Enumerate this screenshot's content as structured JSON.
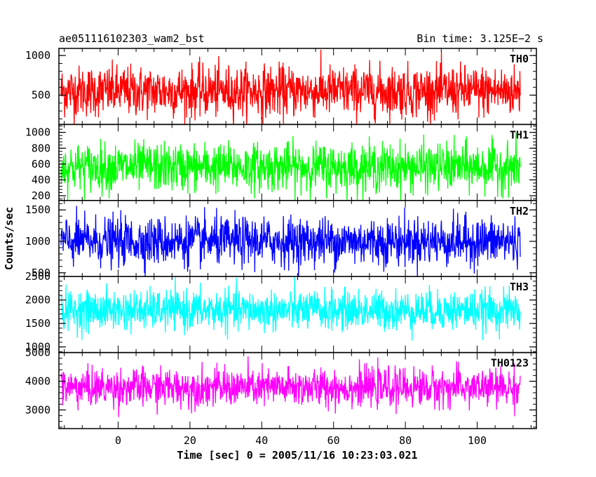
{
  "chart_data": {
    "type": "line",
    "header_left": "ae051116102303_wam2_bst",
    "header_right": "Bin time: 3.125E−2 s",
    "xlabel": "Time [sec] 0 = 2005/11/16 10:23:03.021",
    "ylabel": "Counts/sec",
    "xlim": [
      -16.5,
      116.5
    ],
    "x_ticks": [
      0,
      20,
      40,
      60,
      80,
      100
    ],
    "series_x_range": [
      -15.9,
      112.0
    ],
    "panels": [
      {
        "name": "TH0",
        "color": "#ff0000",
        "ylim": [
          130,
          1090
        ],
        "y_ticks": [
          500,
          1000
        ],
        "mean": 550,
        "spread": 160,
        "min": 120,
        "max": 1090
      },
      {
        "name": "TH1",
        "color": "#00ff00",
        "ylim": [
          140,
          1100
        ],
        "y_ticks": [
          200,
          400,
          600,
          800,
          1000
        ],
        "mean": 560,
        "spread": 150,
        "min": 140,
        "max": 1100
      },
      {
        "name": "TH2",
        "color": "#0000ff",
        "ylim": [
          440,
          1650
        ],
        "y_ticks": [
          500,
          1000,
          1500
        ],
        "mean": 1000,
        "spread": 190,
        "min": 440,
        "max": 1650
      },
      {
        "name": "TH3",
        "color": "#00ffff",
        "ylim": [
          880,
          2500
        ],
        "y_ticks": [
          1000,
          1500,
          2000,
          2500
        ],
        "mean": 1780,
        "spread": 210,
        "min": 880,
        "max": 2500
      },
      {
        "name": "TH0123",
        "color": "#ff00ff",
        "ylim": [
          2350,
          5000
        ],
        "y_ticks": [
          3000,
          4000,
          5000
        ],
        "mean": 3780,
        "spread": 330,
        "min": 2300,
        "max": 5000
      }
    ]
  }
}
